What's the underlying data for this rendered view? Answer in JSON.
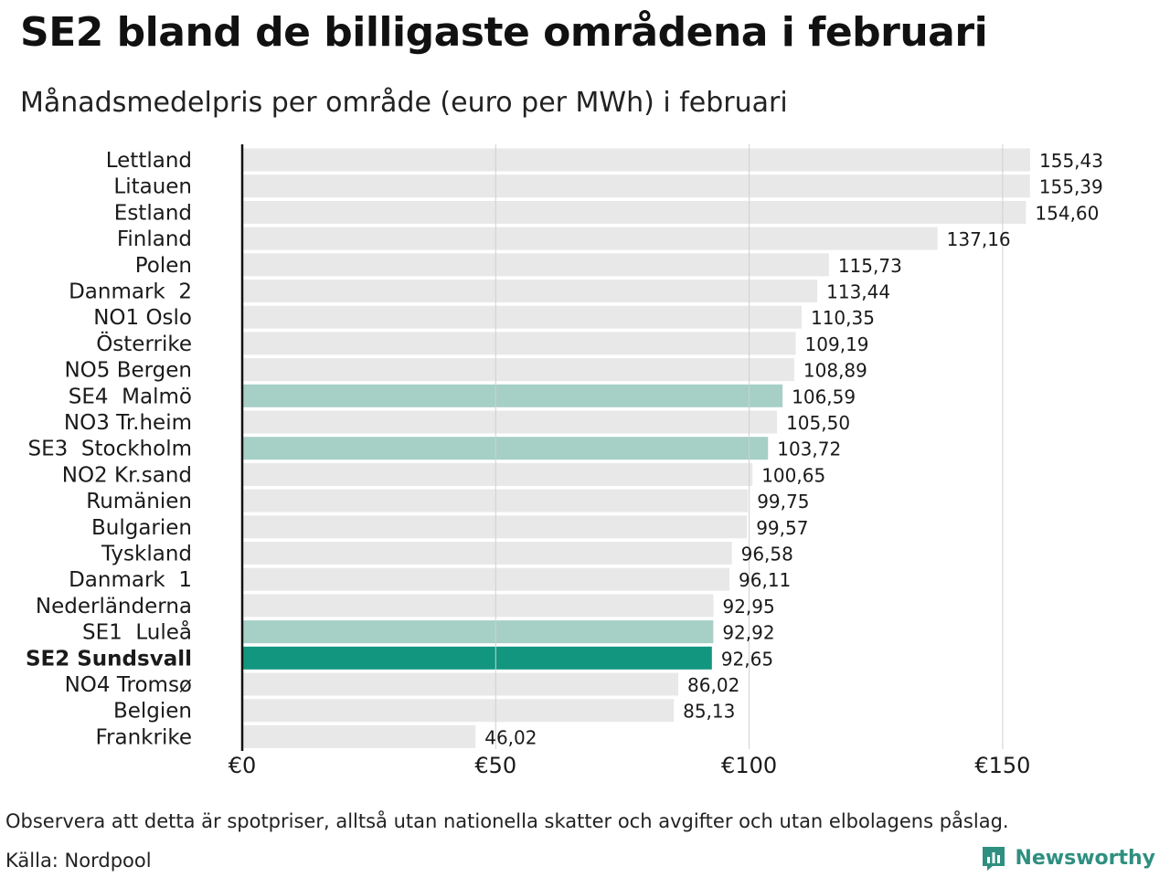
{
  "chart_data": {
    "type": "bar",
    "orientation": "horizontal",
    "title": "SE2 bland de billigaste områdena i februari",
    "subtitle": "Månadsmedelpris per område (euro per MWh) i februari",
    "categories": [
      "Lettland",
      "Litauen",
      "Estland",
      "Finland",
      "Polen",
      "Danmark  2",
      "NO1 Oslo",
      "Österrike",
      "NO5 Bergen",
      "SE4  Malmö",
      "NO3 Tr.heim",
      "SE3  Stockholm",
      "NO2 Kr.sand",
      "Rumänien",
      "Bulgarien",
      "Tyskland",
      "Danmark  1",
      "Nederländerna",
      "SE1  Luleå",
      "SE2 Sundsvall",
      "NO4 Tromsø",
      "Belgien",
      "Frankrike"
    ],
    "values": [
      155.43,
      155.39,
      154.6,
      137.16,
      115.73,
      113.44,
      110.35,
      109.19,
      108.89,
      106.59,
      105.5,
      103.72,
      100.65,
      99.75,
      99.57,
      96.58,
      96.11,
      92.95,
      92.92,
      92.65,
      86.02,
      85.13,
      46.02
    ],
    "value_labels": [
      "155,43",
      "155,39",
      "154,60",
      "137,16",
      "115,73",
      "113,44",
      "110,35",
      "109,19",
      "108,89",
      "106,59",
      "105,50",
      "103,72",
      "100,65",
      "99,75",
      "99,57",
      "96,58",
      "96,11",
      "92,95",
      "92,92",
      "92,65",
      "86,02",
      "85,13",
      "46,02"
    ],
    "highlight": [
      "default",
      "default",
      "default",
      "default",
      "default",
      "default",
      "default",
      "default",
      "default",
      "se",
      "default",
      "se",
      "default",
      "default",
      "default",
      "default",
      "default",
      "default",
      "se",
      "main",
      "default",
      "default",
      "default"
    ],
    "xlim": [
      0,
      155.43
    ],
    "xticks": [
      0,
      50,
      100,
      150
    ],
    "xtick_labels": [
      "€0",
      "€50",
      "€100",
      "€150"
    ],
    "grid": true,
    "colors": {
      "default": "#e8e8e8",
      "se": "#a6cfc6",
      "main": "#13967f",
      "axis": "#111111",
      "grid": "#d0d0d0"
    }
  },
  "footer": {
    "note": "Observera att detta är spotpriser, alltså utan nationella skatter och avgifter och utan elbolagens påslag.",
    "source": "Källa: Nordpool",
    "brand": "Newsworthy",
    "brand_icon": "newsworthy-logo-icon"
  }
}
